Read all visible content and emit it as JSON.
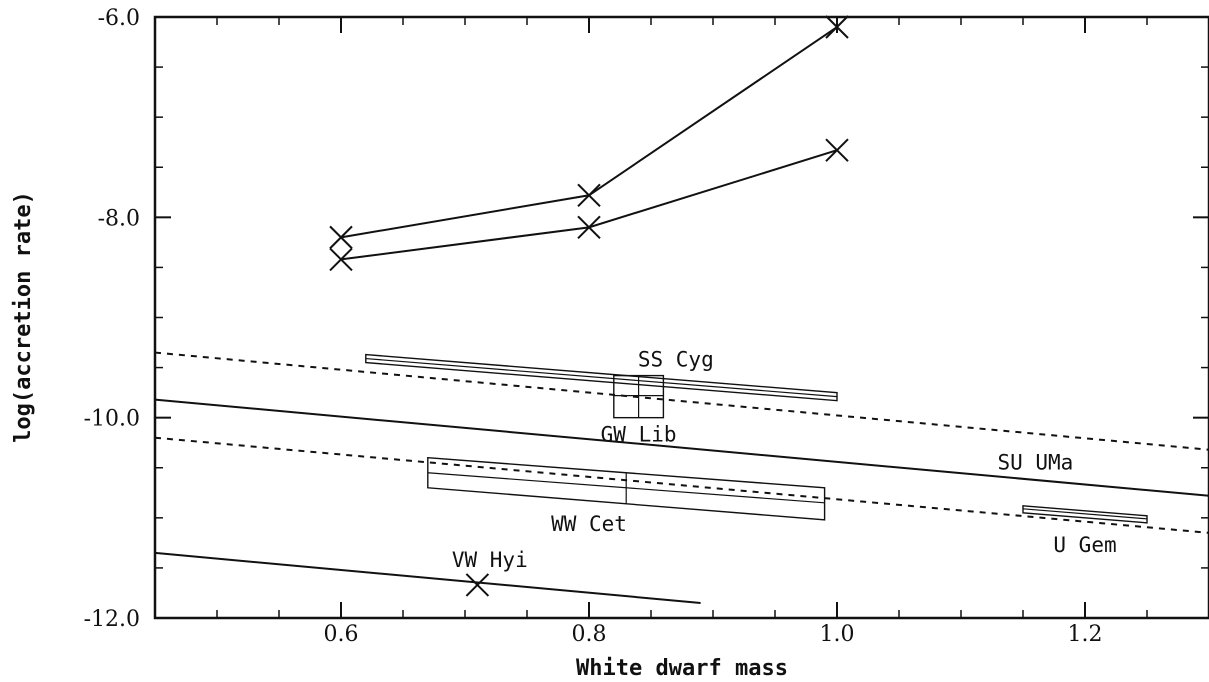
{
  "chart_data": {
    "type": "line",
    "xlabel": "White dwarf mass",
    "ylabel": "log(accretion rate)",
    "xlim": [
      0.45,
      1.3
    ],
    "ylim": [
      -12.0,
      -6.0
    ],
    "x_ticks": [
      0.6,
      0.8,
      1.0,
      1.2
    ],
    "x_tick_labels": [
      "0.6",
      "0.8",
      "1.0",
      "1.2"
    ],
    "y_ticks": [
      -12.0,
      -10.0,
      -8.0,
      -6.0
    ],
    "y_tick_labels": [
      "-12.0",
      "-10.0",
      "-8.0",
      "-6.0"
    ],
    "grid": false,
    "series": [
      {
        "style": "solid-markers",
        "x": [
          0.6,
          0.8,
          1.0
        ],
        "y": [
          -8.2,
          -7.78,
          -6.1
        ]
      },
      {
        "style": "solid-markers",
        "x": [
          0.6,
          0.8,
          1.0
        ],
        "y": [
          -8.42,
          -8.1,
          -7.33
        ]
      },
      {
        "style": "solid",
        "x": [
          0.45,
          1.3
        ],
        "y": [
          -9.82,
          -10.78
        ]
      },
      {
        "style": "dashed",
        "x": [
          0.45,
          1.3
        ],
        "y": [
          -9.35,
          -10.32
        ]
      },
      {
        "style": "dashed",
        "x": [
          0.45,
          1.3
        ],
        "y": [
          -10.2,
          -11.15
        ]
      },
      {
        "style": "solid",
        "x": [
          0.45,
          0.89
        ],
        "y": [
          -11.35,
          -11.85
        ]
      }
    ],
    "point_markers": [
      {
        "x": 0.71,
        "y": -11.67
      }
    ],
    "regions": [
      {
        "label": "SS Cyg",
        "x": [
          0.62,
          1.0
        ],
        "upper": [
          -9.37,
          -9.75
        ],
        "lower": [
          -9.45,
          -9.83
        ],
        "dividers": [
          -9.41,
          -9.79
        ]
      },
      {
        "label": "WW Cet",
        "x": [
          0.67,
          0.99
        ],
        "upper": [
          -10.4,
          -10.7
        ],
        "lower": [
          -10.7,
          -11.02
        ],
        "dividers": [
          -10.55,
          -10.85
        ],
        "split_x": 0.83
      },
      {
        "label": "U Gem",
        "x": [
          1.15,
          1.25
        ],
        "upper": [
          -10.88,
          -10.98
        ],
        "lower": [
          -10.95,
          -11.05
        ],
        "dividers": [
          -10.91,
          -11.01
        ]
      }
    ],
    "grid_boxes": [
      {
        "label": "GW Lib",
        "x": [
          0.82,
          0.86
        ],
        "y": [
          -10.0,
          -9.58
        ],
        "x_dividers": [
          0.84
        ],
        "y_dividers": [
          -9.78
        ]
      }
    ],
    "annotations": [
      {
        "text": "SS Cyg",
        "x": 0.87,
        "y": -9.42
      },
      {
        "text": "GW Lib",
        "x": 0.84,
        "y": -10.17
      },
      {
        "text": "SU UMa",
        "x": 1.16,
        "y": -10.45
      },
      {
        "text": "WW Cet",
        "x": 0.8,
        "y": -11.06
      },
      {
        "text": "U Gem",
        "x": 1.2,
        "y": -11.27
      },
      {
        "text": "VW Hyi",
        "x": 0.72,
        "y": -11.42
      }
    ]
  }
}
